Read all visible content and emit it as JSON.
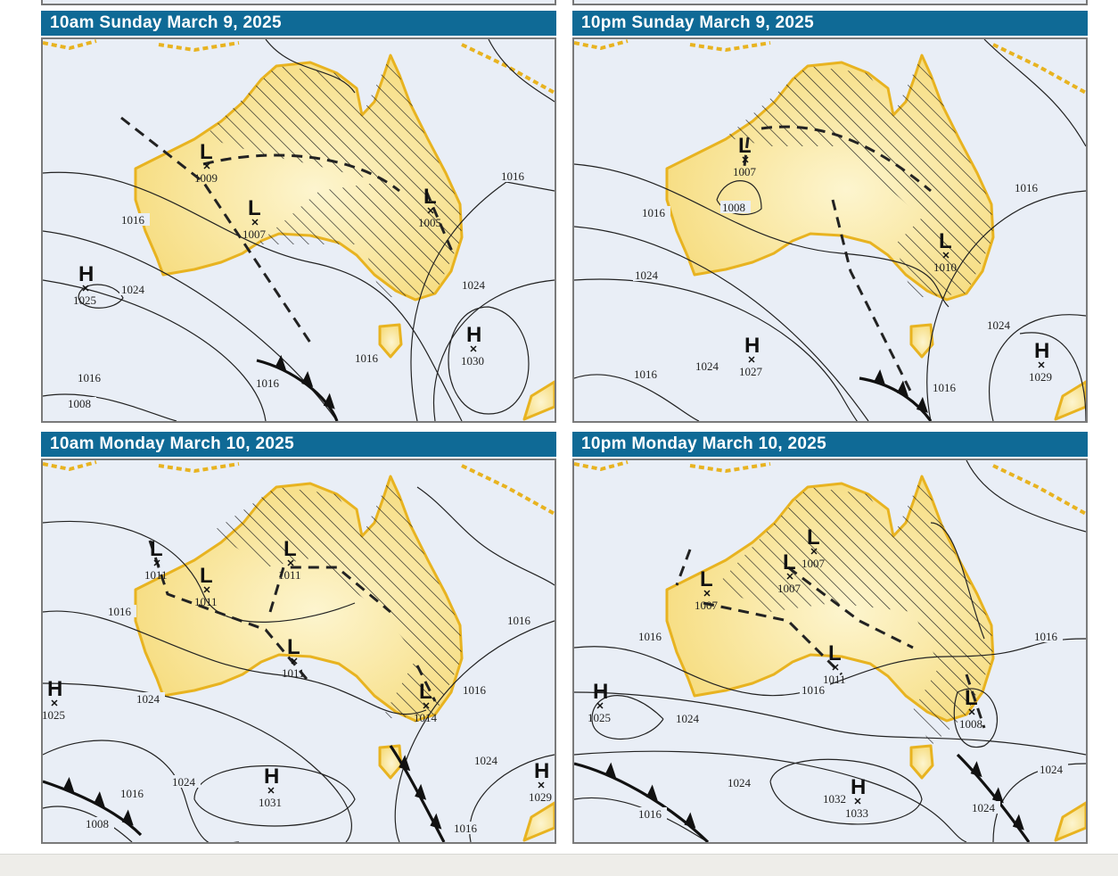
{
  "colors": {
    "title_bar": "#0f6a96",
    "ocean": "#e9eef6",
    "land": "#f6dc7e",
    "coast": "#e8b320",
    "lines": "#222222"
  },
  "legend_symbols": {
    "low": "L",
    "high": "H"
  },
  "panels": [
    {
      "title": "10am Sunday March 9, 2025",
      "systems": [
        {
          "type": "L",
          "value": "1009"
        },
        {
          "type": "L",
          "value": "1007"
        },
        {
          "type": "L",
          "value": "1005"
        },
        {
          "type": "H",
          "value": "1025"
        },
        {
          "type": "H",
          "value": "1030"
        }
      ],
      "isobar_labels": [
        "1016",
        "1016",
        "1024",
        "1024",
        "1016",
        "1016",
        "1016",
        "1008"
      ]
    },
    {
      "title": "10pm Sunday March 9, 2025",
      "systems": [
        {
          "type": "L",
          "value": "1007"
        },
        {
          "type": "L",
          "value": "1010"
        },
        {
          "type": "H",
          "value": "1027"
        },
        {
          "type": "H",
          "value": "1029"
        }
      ],
      "isobar_labels": [
        "1016",
        "1016",
        "1008",
        "1024",
        "1024",
        "1024",
        "1016",
        "1016"
      ]
    },
    {
      "title": "10am Monday March 10, 2025",
      "systems": [
        {
          "type": "L",
          "value": "1011"
        },
        {
          "type": "L",
          "value": "1011"
        },
        {
          "type": "L",
          "value": "1011"
        },
        {
          "type": "L",
          "value": "1011"
        },
        {
          "type": "L",
          "value": "1014"
        },
        {
          "type": "H",
          "value": "1025"
        },
        {
          "type": "H",
          "value": "1031"
        },
        {
          "type": "H",
          "value": "1029"
        }
      ],
      "isobar_labels": [
        "1016",
        "1016",
        "1016",
        "1024",
        "1024",
        "1024",
        "1016",
        "1008",
        "1016"
      ]
    },
    {
      "title": "10pm Monday March 10, 2025",
      "systems": [
        {
          "type": "L",
          "value": "1007"
        },
        {
          "type": "L",
          "value": "1007"
        },
        {
          "type": "L",
          "value": "1007"
        },
        {
          "type": "L",
          "value": "1011"
        },
        {
          "type": "L",
          "value": "1008"
        },
        {
          "type": "H",
          "value": "1025"
        },
        {
          "type": "H",
          "value": "1033"
        }
      ],
      "isobar_labels": [
        "1016",
        "1016",
        "1016",
        "1024",
        "1024",
        "1024",
        "1024",
        "1016",
        "1032"
      ]
    }
  ]
}
